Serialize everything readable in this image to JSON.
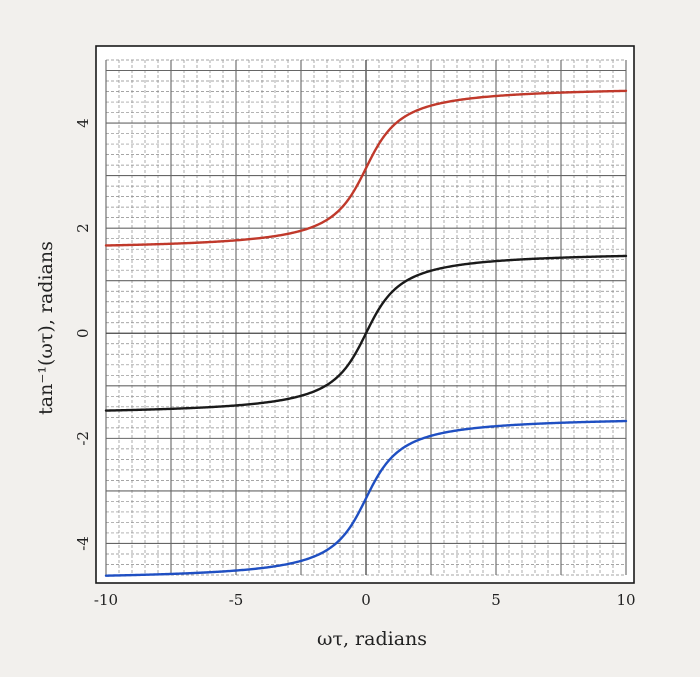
{
  "chart_data": {
    "type": "line",
    "xlabel": "ωτ,  radians",
    "ylabel": "tan⁻¹(ωτ),  radians",
    "xlim": [
      -10,
      10
    ],
    "ylim": [
      -4.6,
      5.2
    ],
    "x_ticks": [
      -10,
      -5,
      0,
      5,
      10
    ],
    "x_tick_labels": [
      "-10",
      "-5",
      "0",
      "5",
      "10"
    ],
    "y_ticks": [
      -4,
      -2,
      0,
      2,
      4
    ],
    "y_tick_labels": [
      "-4",
      "-2",
      "0",
      "2",
      "4"
    ],
    "grid": "major solid lines every 2.5 (x) and 1 (y), minor dashed lines every 0.5 (x) and 0.2 (y)",
    "legend": "none",
    "series": [
      {
        "color": "#c0392b",
        "offset": 3.1416,
        "x": [
          -10,
          -5,
          -2,
          -1,
          0,
          1,
          2,
          5,
          10
        ],
        "y": [
          1.671,
          1.768,
          2.034,
          2.356,
          3.142,
          3.927,
          4.249,
          4.515,
          4.613
        ]
      },
      {
        "color": "#1a1a1a",
        "offset": 0,
        "x": [
          -10,
          -5,
          -2,
          -1,
          0,
          1,
          2,
          5,
          10
        ],
        "y": [
          -1.471,
          -1.373,
          -1.107,
          -0.785,
          0,
          0.785,
          1.107,
          1.373,
          1.471
        ]
      },
      {
        "color": "#1f4fc2",
        "offset": -3.1416,
        "x": [
          -10,
          -5,
          -2,
          -1,
          0,
          1,
          2,
          5,
          10
        ],
        "y": [
          -4.613,
          -4.515,
          -4.249,
          -3.927,
          -3.142,
          -2.356,
          -2.034,
          -1.768,
          -1.671
        ]
      }
    ]
  }
}
